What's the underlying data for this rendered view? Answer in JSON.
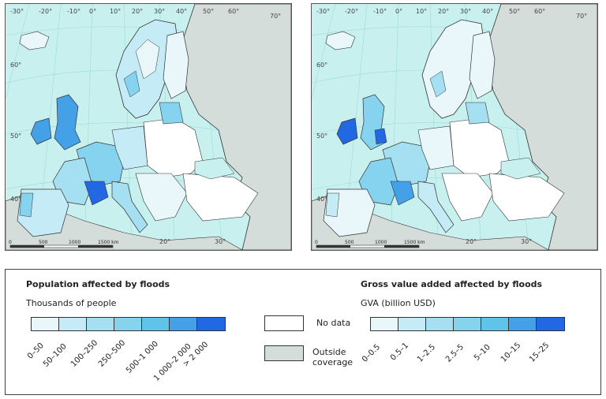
{
  "maps": [
    {
      "coord_labels": [
        "-30°",
        "-20°",
        "-10°",
        "0°",
        "10°",
        "20°",
        "30°",
        "40°",
        "50°",
        "60°",
        "70°",
        "60°",
        "50°",
        "40°",
        "20°",
        "30°"
      ],
      "scale_labels": [
        "0",
        "500",
        "1000",
        "1500 km"
      ]
    },
    {
      "coord_labels": [
        "-30°",
        "-20°",
        "-10°",
        "0°",
        "10°",
        "20°",
        "30°",
        "40°",
        "50°",
        "60°",
        "70°",
        "60°",
        "50°",
        "40°",
        "20°",
        "30°"
      ],
      "scale_labels": [
        "0",
        "500",
        "1000",
        "1500 km"
      ]
    }
  ],
  "legend": {
    "population": {
      "title": "Population affected by floods",
      "unit": "Thousands of people",
      "classes": [
        "0–50",
        "50–100",
        "100–250",
        "250–500",
        "500–1 000",
        "1 000–2 000",
        "> 2 000"
      ],
      "colors": [
        "#e9f7fb",
        "#c5ecf6",
        "#a4e0f1",
        "#85d3ee",
        "#5fc3ec",
        "#44a1e8",
        "#2368e3"
      ]
    },
    "no_data": "No data",
    "outside_coverage": "Outside coverage",
    "gva": {
      "title": "Gross value added affected by floods",
      "unit": "GVA (billion USD)",
      "classes": [
        "0–0.5",
        "0.5–1",
        "1–2.5",
        "2.5–5",
        "5–10",
        "10–15",
        "15–25"
      ],
      "colors": [
        "#e9f7fb",
        "#c5ecf6",
        "#a4e0f1",
        "#85d3ee",
        "#5fc3ec",
        "#44a1e8",
        "#2368e3"
      ]
    },
    "colors": {
      "no_data": "#ffffff",
      "outside_coverage": "#d5ddda",
      "sea": "#c8f0ef"
    }
  }
}
